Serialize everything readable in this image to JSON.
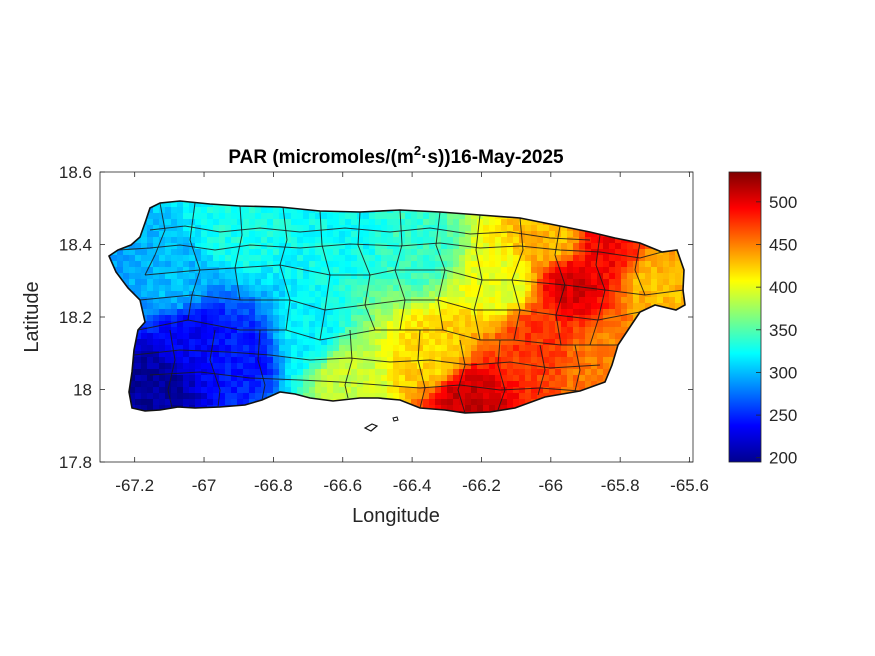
{
  "chart_data": {
    "type": "heatmap",
    "title": {
      "prefix": "PAR (micromoles/(m",
      "superscript": "2",
      "suffix": "·s))16-May-2025"
    },
    "xlabel": "Longitude",
    "ylabel": "Latitude",
    "xlim": [
      -67.3,
      -65.59
    ],
    "ylim": [
      17.8,
      18.6
    ],
    "x_ticks": [
      -67.2,
      -67,
      -66.8,
      -66.6,
      -66.4,
      -66.2,
      -66,
      -65.8,
      -65.6
    ],
    "x_tick_labels": [
      "-67.2",
      "-67",
      "-66.8",
      "-66.6",
      "-66.4",
      "-66.2",
      "-66",
      "-65.8",
      "-65.6"
    ],
    "y_ticks": [
      17.8,
      18,
      18.2,
      18.4,
      18.6
    ],
    "y_tick_labels": [
      "17.8",
      "18",
      "18.2",
      "18.4",
      "18.6"
    ],
    "colormap": "jet",
    "colorbar": {
      "range": [
        195,
        535
      ],
      "ticks": [
        200,
        250,
        300,
        350,
        400,
        450,
        500
      ],
      "tick_labels": [
        "200",
        "250",
        "300",
        "350",
        "400",
        "450",
        "500"
      ]
    },
    "region": "Puerto Rico (municipality boundaries)",
    "field_samples": [
      {
        "lon": -67.15,
        "lat": 18.02,
        "value": 205
      },
      {
        "lon": -67.05,
        "lat": 18.15,
        "value": 235
      },
      {
        "lon": -66.9,
        "lat": 18.1,
        "value": 245
      },
      {
        "lon": -67.1,
        "lat": 18.3,
        "value": 300
      },
      {
        "lon": -66.9,
        "lat": 18.45,
        "value": 330
      },
      {
        "lon": -66.6,
        "lat": 18.45,
        "value": 325
      },
      {
        "lon": -66.7,
        "lat": 18.15,
        "value": 320
      },
      {
        "lon": -66.6,
        "lat": 18.05,
        "value": 390
      },
      {
        "lon": -66.4,
        "lat": 18.4,
        "value": 340
      },
      {
        "lon": -66.35,
        "lat": 18.1,
        "value": 420
      },
      {
        "lon": -66.25,
        "lat": 17.98,
        "value": 510
      },
      {
        "lon": -66.15,
        "lat": 18.3,
        "value": 400
      },
      {
        "lon": -66.05,
        "lat": 18.15,
        "value": 475
      },
      {
        "lon": -65.95,
        "lat": 18.3,
        "value": 505
      },
      {
        "lon": -65.85,
        "lat": 18.4,
        "value": 495
      },
      {
        "lon": -65.85,
        "lat": 18.1,
        "value": 450
      },
      {
        "lon": -65.7,
        "lat": 18.3,
        "value": 430
      },
      {
        "lon": -66.0,
        "lat": 18.42,
        "value": 430
      }
    ]
  }
}
